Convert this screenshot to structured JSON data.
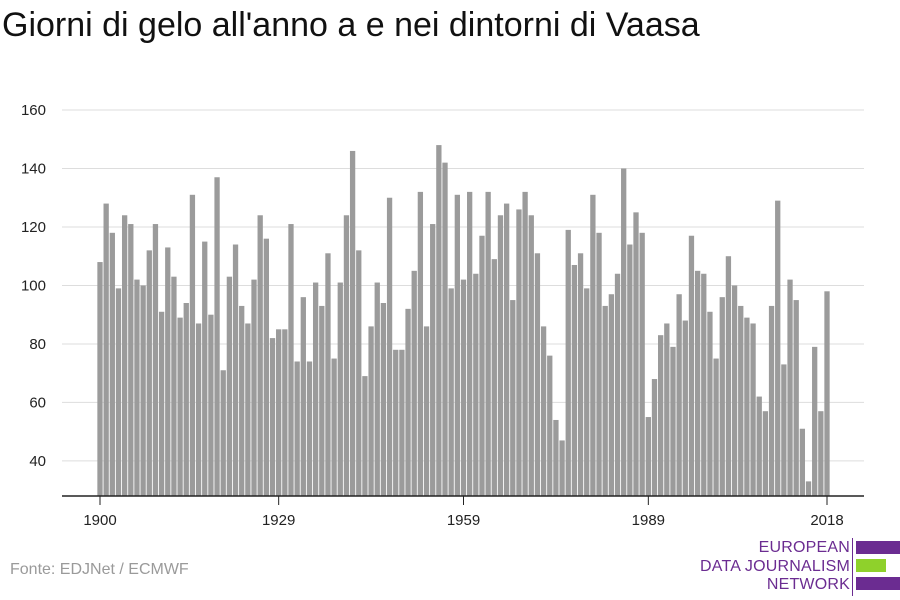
{
  "title": "Giorni di gelo all'anno a e nei dintorni di Vaasa",
  "source": "Fonte: EDJNet / ECMWF",
  "logo": {
    "lines": [
      "EUROPEAN",
      "DATA JOURNALISM",
      "NETWORK"
    ],
    "colors": {
      "purple": "#6b2c91",
      "green": "#8fd12b"
    }
  },
  "colors": {
    "bar": "#9b9b9b",
    "grid": "#dddddd",
    "axis": "#222222"
  },
  "chart_data": {
    "type": "bar",
    "title": "Giorni di gelo all'anno a e nei dintorni di Vaasa",
    "xlabel": "",
    "ylabel": "",
    "ylim": [
      28,
      160
    ],
    "yticks": [
      40,
      60,
      80,
      100,
      120,
      140,
      160
    ],
    "xticks": [
      1900,
      1929,
      1959,
      1989,
      2018
    ],
    "grid": true,
    "x": [
      1900,
      1901,
      1902,
      1903,
      1904,
      1905,
      1906,
      1907,
      1908,
      1909,
      1910,
      1911,
      1912,
      1913,
      1914,
      1915,
      1916,
      1917,
      1918,
      1919,
      1920,
      1921,
      1922,
      1923,
      1924,
      1925,
      1926,
      1927,
      1928,
      1929,
      1930,
      1931,
      1932,
      1933,
      1934,
      1935,
      1936,
      1937,
      1938,
      1939,
      1940,
      1941,
      1942,
      1943,
      1944,
      1945,
      1946,
      1947,
      1948,
      1949,
      1950,
      1951,
      1952,
      1953,
      1954,
      1955,
      1956,
      1957,
      1958,
      1959,
      1960,
      1961,
      1962,
      1963,
      1964,
      1965,
      1966,
      1967,
      1968,
      1969,
      1970,
      1971,
      1972,
      1973,
      1974,
      1975,
      1976,
      1977,
      1978,
      1979,
      1980,
      1981,
      1982,
      1983,
      1984,
      1985,
      1986,
      1987,
      1988,
      1989,
      1990,
      1991,
      1992,
      1993,
      1994,
      1995,
      1996,
      1997,
      1998,
      1999,
      2000,
      2001,
      2002,
      2003,
      2004,
      2005,
      2006,
      2007,
      2008,
      2009,
      2010,
      2011,
      2012,
      2013,
      2014,
      2015,
      2016,
      2017,
      2018
    ],
    "values": [
      108,
      128,
      118,
      99,
      124,
      121,
      102,
      100,
      112,
      121,
      91,
      113,
      103,
      89,
      94,
      131,
      87,
      115,
      90,
      137,
      71,
      103,
      114,
      93,
      87,
      102,
      124,
      116,
      82,
      85,
      85,
      121,
      74,
      96,
      74,
      101,
      93,
      111,
      75,
      101,
      124,
      146,
      112,
      69,
      86,
      101,
      94,
      130,
      78,
      78,
      92,
      105,
      132,
      86,
      121,
      148,
      142,
      99,
      131,
      102,
      132,
      104,
      117,
      132,
      109,
      124,
      128,
      95,
      126,
      132,
      124,
      111,
      86,
      76,
      54,
      47,
      119,
      107,
      111,
      99,
      131,
      118,
      93,
      97,
      104,
      140,
      114,
      125,
      118,
      55,
      68,
      83,
      87,
      79,
      97,
      88,
      117,
      105,
      104,
      91,
      75,
      96,
      110,
      100,
      93,
      89,
      87,
      62,
      57,
      93,
      129,
      73,
      102,
      95,
      51,
      33,
      79,
      57,
      98
    ]
  }
}
